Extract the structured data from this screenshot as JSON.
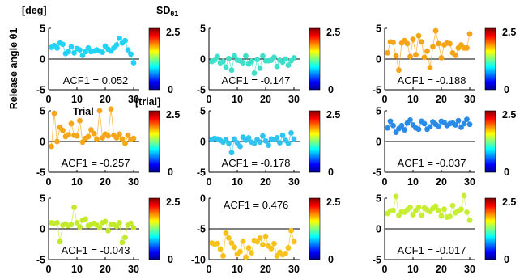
{
  "figure": {
    "ylabel": "Release angle θ1",
    "yunit": "[deg]",
    "xunit": "[trial]",
    "xlabel": "Trial",
    "colorbar_title": "SD",
    "colorbar_title_sub": "θ1",
    "colorbar_range": [
      0,
      2.5
    ],
    "colorbar_ticks": [
      "0",
      "2.5"
    ]
  },
  "chart_data": [
    {
      "type": "scatter",
      "annotation": "ACF1 = 0.052",
      "ylim": [
        -5,
        5
      ],
      "yticks": [
        "5",
        "0",
        "-5"
      ],
      "xlim": [
        0,
        32
      ],
      "xticks": [
        "0",
        "10",
        "20",
        "30"
      ],
      "color": "#22d3f5",
      "x": [
        1,
        2,
        3,
        4,
        5,
        6,
        7,
        8,
        9,
        10,
        11,
        12,
        13,
        14,
        15,
        16,
        17,
        18,
        19,
        20,
        21,
        22,
        23,
        24,
        25,
        26,
        27,
        28,
        29,
        30
      ],
      "y": [
        1.9,
        2.2,
        1.8,
        2.6,
        2.4,
        0.9,
        1.2,
        2.0,
        1.0,
        1.7,
        1.5,
        0.6,
        1.2,
        1.8,
        1.2,
        1.3,
        1.5,
        1.3,
        1.1,
        2.1,
        1.6,
        1.3,
        1.8,
        2.3,
        3.4,
        2.6,
        3.0,
        1.5,
        0.8,
        -0.6
      ]
    },
    {
      "type": "scatter",
      "annotation": "ACF1 = -0.147",
      "ylim": [
        -5,
        5
      ],
      "yticks": [
        "5",
        "0",
        "-5"
      ],
      "xlim": [
        0,
        32
      ],
      "xticks": [
        "0",
        "10",
        "20",
        "30"
      ],
      "color": "#3de0c8",
      "x": [
        1,
        2,
        3,
        4,
        5,
        6,
        7,
        8,
        9,
        10,
        11,
        12,
        13,
        14,
        15,
        16,
        17,
        18,
        19,
        20,
        21,
        22,
        23,
        24,
        25,
        26,
        27,
        28,
        29,
        30
      ],
      "y": [
        -0.4,
        -0.2,
        0.4,
        -0.6,
        -0.4,
        -1.3,
        0.1,
        -1.8,
        0.5,
        -0.2,
        -0.3,
        -0.6,
        0.5,
        -0.8,
        -0.4,
        -2.3,
        -0.1,
        -1.5,
        0.5,
        -0.3,
        -0.3,
        -0.2,
        0.3,
        -1.2,
        -0.2,
        -0.5,
        0.0,
        -1.0,
        -0.3,
        0.2
      ]
    },
    {
      "type": "scatter",
      "annotation": "ACF1 = -0.188",
      "ylim": [
        -5,
        5
      ],
      "yticks": [
        "5",
        "0",
        "-5"
      ],
      "xlim": [
        0,
        32
      ],
      "xticks": [
        "0",
        "10",
        "20",
        "30"
      ],
      "color": "#f5a416",
      "x": [
        1,
        2,
        3,
        4,
        5,
        6,
        7,
        8,
        9,
        10,
        11,
        12,
        13,
        14,
        15,
        16,
        17,
        18,
        19,
        20,
        21,
        22,
        23,
        24,
        25,
        26,
        27,
        28,
        29,
        30
      ],
      "y": [
        1.0,
        2.8,
        2.7,
        0.5,
        -1.8,
        2.6,
        3.0,
        2.5,
        0.4,
        3.2,
        0.7,
        3.8,
        2.8,
        0.3,
        1.3,
        -1.4,
        2.0,
        4.6,
        2.5,
        0.2,
        2.3,
        2.6,
        2.5,
        1.0,
        0.6,
        1.8,
        2.3,
        1.8,
        1.8,
        4.1
      ]
    },
    {
      "type": "scatter",
      "annotation": "ACF1 = -0.257",
      "ylim": [
        -5,
        5
      ],
      "yticks": [
        "5",
        "0",
        "-5"
      ],
      "xlim": [
        0,
        32
      ],
      "xticks": [
        "0",
        "10",
        "20",
        "30"
      ],
      "color": "#f5a61a",
      "x": [
        1,
        2,
        3,
        4,
        5,
        6,
        7,
        8,
        9,
        10,
        11,
        12,
        13,
        14,
        15,
        16,
        17,
        18,
        19,
        20,
        21,
        22,
        23,
        24,
        25,
        26,
        27,
        28,
        29,
        30
      ],
      "y": [
        -0.8,
        4.6,
        0.0,
        2.3,
        1.8,
        0.8,
        1.1,
        2.9,
        1.0,
        0.9,
        3.4,
        -0.1,
        0.5,
        0.8,
        1.9,
        1.3,
        0.4,
        5.0,
        0.6,
        1.2,
        0.9,
        5.3,
        1.0,
        0.6,
        1.2,
        0.4,
        -0.3,
        1.0,
        0.3,
        0.5
      ]
    },
    {
      "type": "scatter",
      "annotation": "ACF1 = -0.178",
      "ylim": [
        -5,
        5
      ],
      "yticks": [
        "5",
        "0",
        "-5"
      ],
      "xlim": [
        0,
        32
      ],
      "xticks": [
        "0",
        "10",
        "20",
        "30"
      ],
      "color": "#2fc4f0",
      "x": [
        1,
        2,
        3,
        4,
        5,
        6,
        7,
        8,
        9,
        10,
        11,
        12,
        13,
        14,
        15,
        16,
        17,
        18,
        19,
        20,
        21,
        22,
        23,
        24,
        25,
        26,
        27,
        28,
        29,
        30
      ],
      "y": [
        0.3,
        0.5,
        0.4,
        0.2,
        -0.1,
        0.3,
        -0.3,
        -1.8,
        0.4,
        -0.2,
        -0.8,
        0.7,
        0.2,
        0.6,
        -0.1,
        -0.3,
        0.3,
        -0.1,
        0.9,
        0.1,
        -0.6,
        0.4,
        0.3,
        0.6,
        -0.2,
        1.0,
        0.2,
        -0.3,
        1.4,
        0.4
      ]
    },
    {
      "type": "scatter",
      "annotation": "ACF1 = -0.037",
      "ylim": [
        -5,
        5
      ],
      "yticks": [
        "5",
        "0",
        "-5"
      ],
      "xlim": [
        0,
        32
      ],
      "xticks": [
        "0",
        "10",
        "20",
        "30"
      ],
      "color": "#2a8ae8",
      "x": [
        1,
        2,
        3,
        4,
        5,
        6,
        7,
        8,
        9,
        10,
        11,
        12,
        13,
        14,
        15,
        16,
        17,
        18,
        19,
        20,
        21,
        22,
        23,
        24,
        25,
        26,
        27,
        28,
        29,
        30
      ],
      "y": [
        2.2,
        3.3,
        2.6,
        1.5,
        2.1,
        2.6,
        1.9,
        3.0,
        3.5,
        2.7,
        2.2,
        2.0,
        3.3,
        2.9,
        2.0,
        2.4,
        3.2,
        2.8,
        2.5,
        3.3,
        3.1,
        2.6,
        2.9,
        3.0,
        2.7,
        3.4,
        2.3,
        2.9,
        3.6,
        2.8
      ]
    },
    {
      "type": "scatter",
      "annotation": "ACF1 = -0.043",
      "ylim": [
        -5,
        5
      ],
      "yticks": [
        "5",
        "0",
        "-5"
      ],
      "xlim": [
        0,
        32
      ],
      "xticks": [
        "0",
        "10",
        "20",
        "30"
      ],
      "color": "#c3ea2a",
      "x": [
        1,
        2,
        3,
        4,
        5,
        6,
        7,
        8,
        9,
        10,
        11,
        12,
        13,
        14,
        15,
        16,
        17,
        18,
        19,
        20,
        21,
        22,
        23,
        24,
        25,
        26,
        27,
        28,
        29,
        30
      ],
      "y": [
        1.0,
        0.9,
        1.0,
        -2.1,
        0.6,
        0.8,
        0.5,
        0.7,
        3.5,
        1.0,
        0.3,
        1.4,
        1.6,
        0.5,
        0.7,
        0.9,
        0.6,
        0.2,
        1.0,
        1.2,
        -0.3,
        0.7,
        0.7,
        0.4,
        1.0,
        -2.2,
        -1.4,
        0.6,
        0.9,
        0.2
      ]
    },
    {
      "type": "scatter",
      "annotation": "ACF1 = 0.476",
      "ylim": [
        -10,
        0
      ],
      "yticks": [
        "0",
        "-5",
        "-10"
      ],
      "xlim": [
        0,
        32
      ],
      "xticks": [
        "0",
        "10",
        "20",
        "30"
      ],
      "color": "#f7c21e",
      "x": [
        1,
        2,
        3,
        4,
        5,
        6,
        7,
        8,
        9,
        10,
        11,
        12,
        13,
        14,
        15,
        16,
        17,
        18,
        19,
        20,
        21,
        22,
        23,
        24,
        25,
        26,
        27,
        28,
        29,
        30
      ],
      "y": [
        -7.3,
        -7.5,
        -7.4,
        -8.3,
        -9.4,
        -5.7,
        -6.5,
        -7.3,
        -8.0,
        -9.1,
        -8.7,
        -7.0,
        -9.6,
        -8.1,
        -8.9,
        -6.9,
        -7.1,
        -6.5,
        -7.6,
        -6.2,
        -7.8,
        -8.2,
        -7.4,
        -9.4,
        -8.8,
        -9.2,
        -9.0,
        -8.1,
        -5.3,
        -7.1
      ]
    },
    {
      "type": "scatter",
      "annotation": "ACF1 = -0.017",
      "ylim": [
        -5,
        5
      ],
      "yticks": [
        "5",
        "0",
        "-5"
      ],
      "xlim": [
        0,
        32
      ],
      "xticks": [
        "0",
        "10",
        "20",
        "30"
      ],
      "color": "#c7ee33",
      "x": [
        1,
        2,
        3,
        4,
        5,
        6,
        7,
        8,
        9,
        10,
        11,
        12,
        13,
        14,
        15,
        16,
        17,
        18,
        19,
        20,
        21,
        22,
        23,
        24,
        25,
        26,
        27,
        28,
        29,
        30
      ],
      "y": [
        2.5,
        2.9,
        3.0,
        5.3,
        2.2,
        2.8,
        2.7,
        3.1,
        3.5,
        2.3,
        3.0,
        3.5,
        2.2,
        3.4,
        3.1,
        2.8,
        3.3,
        3.7,
        3.0,
        2.1,
        3.2,
        1.9,
        2.0,
        3.8,
        2.6,
        2.9,
        3.2,
        5.4,
        2.7,
        1.4
      ]
    }
  ]
}
